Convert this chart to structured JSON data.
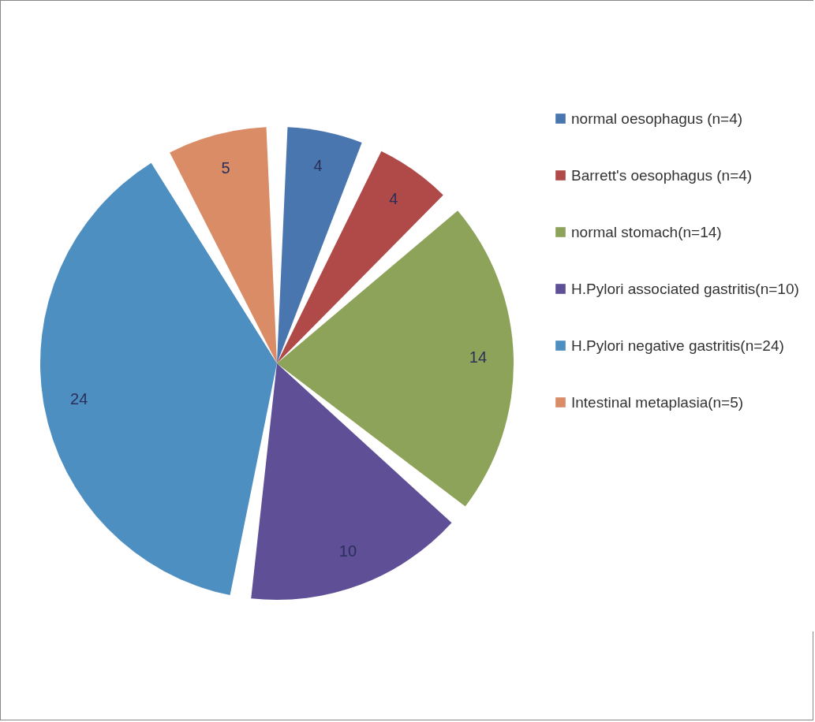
{
  "chart_data": {
    "type": "pie",
    "categories": [
      "normal oesophagus (n=4)",
      "Barrett's oesophagus (n=4)",
      "normal stomach(n=14)",
      "H.Pylori associated gastritis(n=10)",
      "H.Pylori negative gastritis(n=24)",
      "Intestinal metaplasia(n=5)"
    ],
    "values": [
      4,
      4,
      14,
      10,
      24,
      5
    ],
    "colors": [
      "#4a76b0",
      "#b04a48",
      "#8ea35a",
      "#5e4f97",
      "#4e8fc2",
      "#d98c66"
    ],
    "data_labels": true,
    "legend": "right"
  }
}
